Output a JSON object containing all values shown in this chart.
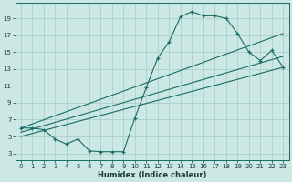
{
  "xlabel": "Humidex (Indice chaleur)",
  "bg_color": "#cce8e4",
  "grid_color": "#aacfcb",
  "line_color": "#1a6b66",
  "xlim": [
    -0.5,
    23.5
  ],
  "ylim": [
    2.2,
    20.8
  ],
  "xticks": [
    0,
    1,
    2,
    3,
    4,
    5,
    6,
    7,
    8,
    9,
    10,
    11,
    12,
    13,
    14,
    15,
    16,
    17,
    18,
    19,
    20,
    21,
    22,
    23
  ],
  "yticks": [
    3,
    5,
    7,
    9,
    11,
    13,
    15,
    17,
    19
  ],
  "series1_x": [
    0,
    1,
    2,
    3,
    4,
    5,
    6,
    7,
    8,
    9,
    10,
    11,
    12,
    13,
    14,
    15,
    16,
    17,
    18,
    19,
    20,
    21,
    22,
    23
  ],
  "series1_y": [
    6.0,
    6.0,
    5.8,
    4.7,
    4.1,
    4.7,
    3.3,
    3.2,
    3.2,
    3.2,
    7.2,
    10.8,
    14.3,
    16.2,
    19.2,
    19.8,
    19.3,
    19.3,
    19.0,
    17.2,
    15.0,
    14.0,
    15.2,
    13.2
  ],
  "line2_x": [
    0,
    23
  ],
  "line2_y": [
    6.0,
    17.2
  ],
  "line3_x": [
    0,
    23
  ],
  "line3_y": [
    5.5,
    14.5
  ],
  "line4_x": [
    0,
    23
  ],
  "line4_y": [
    5.0,
    13.2
  ],
  "label_fontsize": 5.0,
  "xlabel_fontsize": 6.0
}
